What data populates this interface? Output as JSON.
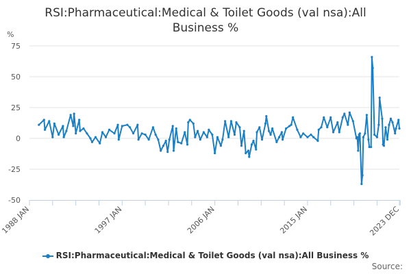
{
  "chart_data": {
    "type": "line",
    "title": "RSI:Pharmaceutical:Medical & Toilet Goods (val nsa):All Business %",
    "ylabel": "%",
    "xlabel": "",
    "ylim": [
      -50,
      75
    ],
    "yticks": [
      75,
      50,
      25,
      0,
      -25,
      -50
    ],
    "xlim": [
      "1988-01",
      "2023-12"
    ],
    "xtick_labels": [
      {
        "date": "1988-01",
        "label": "1988 JAN"
      },
      {
        "date": "1997-01",
        "label": "1997 JAN"
      },
      {
        "date": "2006-01",
        "label": "2006 JAN"
      },
      {
        "date": "2015-01",
        "label": "2015 JAN"
      },
      {
        "date": "2023-12",
        "label": "2023 DEC"
      }
    ],
    "grid": true,
    "legend_position": "bottom",
    "series": [
      {
        "name": "RSI:Pharmaceutical:Medical & Toilet Goods (val nsa):All Business %",
        "color": "#1a7fc4",
        "points": [
          [
            "1988-12",
            11
          ],
          [
            "1989-06",
            15
          ],
          [
            "1989-07",
            7
          ],
          [
            "1989-12",
            14
          ],
          [
            "1990-04",
            1
          ],
          [
            "1990-06",
            12
          ],
          [
            "1990-11",
            3
          ],
          [
            "1991-04",
            10
          ],
          [
            "1991-05",
            1
          ],
          [
            "1991-08",
            6
          ],
          [
            "1992-01",
            19
          ],
          [
            "1992-04",
            10
          ],
          [
            "1992-05",
            20
          ],
          [
            "1992-07",
            4
          ],
          [
            "1992-11",
            15
          ],
          [
            "1992-12",
            6
          ],
          [
            "1993-04",
            8
          ],
          [
            "1993-08",
            4
          ],
          [
            "1993-12",
            0
          ],
          [
            "1994-02",
            -3
          ],
          [
            "1994-06",
            1
          ],
          [
            "1994-11",
            -4
          ],
          [
            "1995-02",
            5
          ],
          [
            "1995-06",
            1
          ],
          [
            "1995-10",
            7
          ],
          [
            "1996-04",
            4
          ],
          [
            "1996-08",
            11
          ],
          [
            "1996-09",
            -1
          ],
          [
            "1997-01",
            10
          ],
          [
            "1997-07",
            11
          ],
          [
            "1997-10",
            9
          ],
          [
            "1998-02",
            4
          ],
          [
            "1998-07",
            11
          ],
          [
            "1998-08",
            -1
          ],
          [
            "1998-12",
            4
          ],
          [
            "1999-04",
            3
          ],
          [
            "1999-08",
            -1
          ],
          [
            "2000-01",
            9
          ],
          [
            "2000-04",
            3
          ],
          [
            "2000-07",
            -1
          ],
          [
            "2000-10",
            -10
          ],
          [
            "2001-01",
            -6
          ],
          [
            "2001-04",
            -2
          ],
          [
            "2001-06",
            -11
          ],
          [
            "2001-08",
            -1
          ],
          [
            "2001-12",
            10
          ],
          [
            "2002-01",
            -10
          ],
          [
            "2002-04",
            8
          ],
          [
            "2002-06",
            -3
          ],
          [
            "2002-10",
            -4
          ],
          [
            "2003-02",
            5
          ],
          [
            "2003-05",
            -5
          ],
          [
            "2003-06",
            13
          ],
          [
            "2003-08",
            15
          ],
          [
            "2003-12",
            12
          ],
          [
            "2004-02",
            1
          ],
          [
            "2004-05",
            6
          ],
          [
            "2004-08",
            -1
          ],
          [
            "2004-12",
            5
          ],
          [
            "2005-04",
            1
          ],
          [
            "2005-06",
            7
          ],
          [
            "2005-10",
            3
          ],
          [
            "2006-01",
            -12
          ],
          [
            "2006-04",
            1
          ],
          [
            "2006-08",
            -6
          ],
          [
            "2006-10",
            -1
          ],
          [
            "2007-01",
            14
          ],
          [
            "2007-05",
            1
          ],
          [
            "2007-08",
            14
          ],
          [
            "2007-12",
            3
          ],
          [
            "2008-02",
            13
          ],
          [
            "2008-06",
            9
          ],
          [
            "2008-08",
            -6
          ],
          [
            "2008-11",
            6
          ],
          [
            "2009-01",
            -12
          ],
          [
            "2009-04",
            -10
          ],
          [
            "2009-05",
            -15
          ],
          [
            "2009-08",
            -5
          ],
          [
            "2009-10",
            -2
          ],
          [
            "2010-01",
            -9
          ],
          [
            "2010-02",
            5
          ],
          [
            "2010-05",
            9
          ],
          [
            "2010-08",
            -1
          ],
          [
            "2010-12",
            12
          ],
          [
            "2011-01",
            18
          ],
          [
            "2011-04",
            6
          ],
          [
            "2011-06",
            3
          ],
          [
            "2011-08",
            8
          ],
          [
            "2012-01",
            -3
          ],
          [
            "2012-04",
            1
          ],
          [
            "2012-07",
            5
          ],
          [
            "2012-08",
            -1
          ],
          [
            "2012-12",
            8
          ],
          [
            "2013-04",
            10
          ],
          [
            "2013-06",
            11
          ],
          [
            "2013-08",
            17
          ],
          [
            "2014-01",
            7
          ],
          [
            "2014-05",
            1
          ],
          [
            "2014-08",
            4
          ],
          [
            "2015-01",
            1
          ],
          [
            "2015-05",
            3
          ],
          [
            "2015-08",
            1
          ],
          [
            "2016-01",
            -2
          ],
          [
            "2016-02",
            7
          ],
          [
            "2016-05",
            9
          ],
          [
            "2016-08",
            17
          ],
          [
            "2016-12",
            9
          ],
          [
            "2017-04",
            17
          ],
          [
            "2017-07",
            5
          ],
          [
            "2017-12",
            13
          ],
          [
            "2018-02",
            5
          ],
          [
            "2018-06",
            17
          ],
          [
            "2018-08",
            20
          ],
          [
            "2018-12",
            11
          ],
          [
            "2019-02",
            21
          ],
          [
            "2019-06",
            14
          ],
          [
            "2019-10",
            0
          ],
          [
            "2019-11",
            1
          ],
          [
            "2019-12",
            -10
          ],
          [
            "2020-01",
            3
          ],
          [
            "2020-02",
            4
          ],
          [
            "2020-04",
            -37
          ],
          [
            "2020-05",
            -30
          ],
          [
            "2020-06",
            1
          ],
          [
            "2020-08",
            4
          ],
          [
            "2020-10",
            19
          ],
          [
            "2020-12",
            -1
          ],
          [
            "2021-01",
            -7
          ],
          [
            "2021-03",
            -7
          ],
          [
            "2021-04",
            66
          ],
          [
            "2021-05",
            57
          ],
          [
            "2021-07",
            3
          ],
          [
            "2021-10",
            1
          ],
          [
            "2021-12",
            11
          ],
          [
            "2022-01",
            33
          ],
          [
            "2022-04",
            16
          ],
          [
            "2022-05",
            -5
          ],
          [
            "2022-06",
            -6
          ],
          [
            "2022-08",
            9
          ],
          [
            "2022-10",
            -1
          ],
          [
            "2022-12",
            11
          ],
          [
            "2023-02",
            16
          ],
          [
            "2023-04",
            13
          ],
          [
            "2023-07",
            4
          ],
          [
            "2023-08",
            8
          ],
          [
            "2023-11",
            15
          ],
          [
            "2023-12",
            8
          ]
        ]
      }
    ]
  },
  "legend": {
    "label": "RSI:Pharmaceutical:Medical & Toilet Goods (val nsa):All Business %"
  },
  "source": "Source:"
}
